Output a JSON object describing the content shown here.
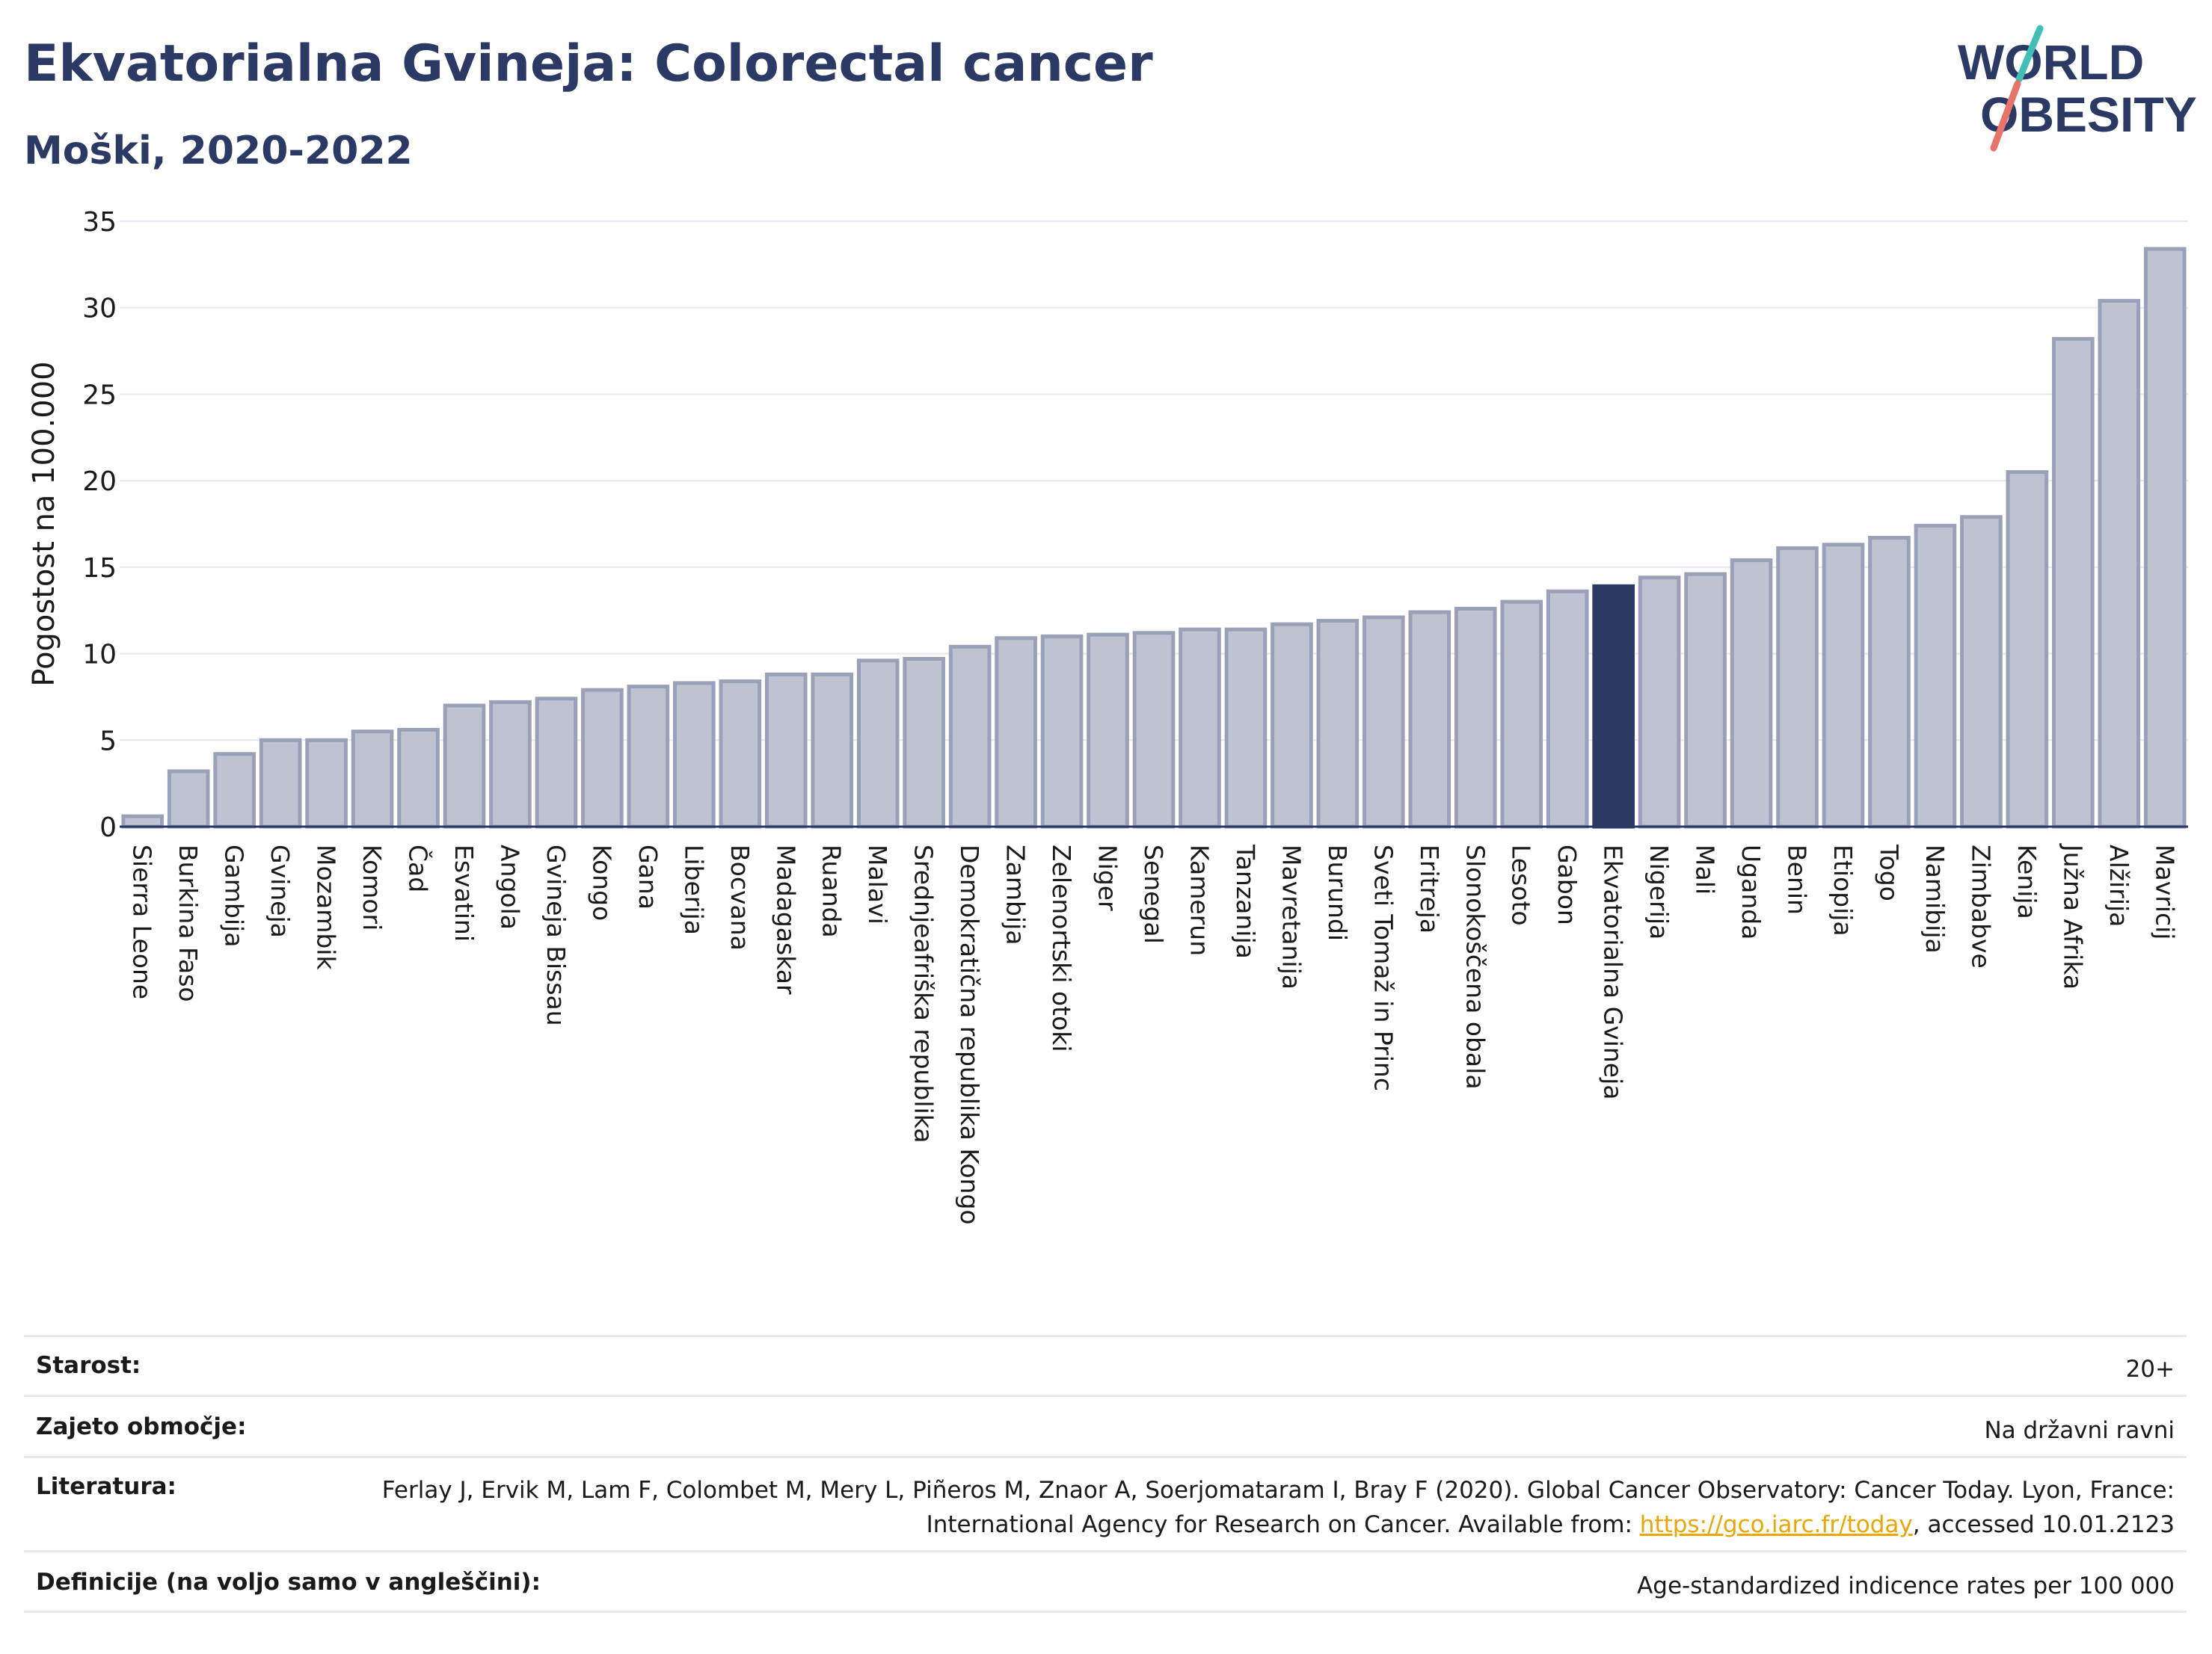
{
  "header": {
    "title": "Ekvatorialna Gvineja: Colorectal cancer",
    "subtitle": "Moški, 2020-2022"
  },
  "logo": {
    "line1": "WORLD",
    "line2": "OBESITY"
  },
  "colors": {
    "bar": "#bfc3d1",
    "bar_border": "#9aa0b8",
    "highlight": "#2b3a64",
    "title": "#2b3a64"
  },
  "chart_data": {
    "type": "bar",
    "ylabel": "Pogostost na 100.000",
    "ylim": [
      0,
      35
    ],
    "yticks": [
      0,
      5,
      10,
      15,
      20,
      25,
      30,
      35
    ],
    "grid": true,
    "highlight": "Ekvatorialna Gvineja",
    "categories": [
      "Sierra Leone",
      "Burkina Faso",
      "Gambija",
      "Gvineja",
      "Mozambik",
      "Komori",
      "Čad",
      "Esvatini",
      "Angola",
      "Gvineja Bissau",
      "Kongo",
      "Gana",
      "Liberija",
      "Bocvana",
      "Madagaskar",
      "Ruanda",
      "Malavi",
      "Srednjeafriška republika",
      "Demokratična republika Kongo",
      "Zambija",
      "Zelenortski otoki",
      "Niger",
      "Senegal",
      "Kamerun",
      "Tanzanija",
      "Mavretanija",
      "Burundi",
      "Sveti Tomaž in Princ",
      "Eritreja",
      "Slonokoščena obala",
      "Lesoto",
      "Gabon",
      "Ekvatorialna Gvineja",
      "Nigerija",
      "Mali",
      "Uganda",
      "Benin",
      "Etiopija",
      "Togo",
      "Namibija",
      "Zimbabve",
      "Kenija",
      "Južna Afrika",
      "Alžirija",
      "Mavricij"
    ],
    "values": [
      0.6,
      3.2,
      4.2,
      5.0,
      5.0,
      5.5,
      5.6,
      7.0,
      7.2,
      7.4,
      7.9,
      8.1,
      8.3,
      8.4,
      8.8,
      8.8,
      9.6,
      9.7,
      10.4,
      10.9,
      11.0,
      11.1,
      11.2,
      11.4,
      11.4,
      11.7,
      11.9,
      12.1,
      12.4,
      12.6,
      13.0,
      13.6,
      13.9,
      14.4,
      14.6,
      15.4,
      16.1,
      16.3,
      16.7,
      17.4,
      17.9,
      20.5,
      28.2,
      30.4,
      33.4
    ]
  },
  "meta": {
    "age_label": "Starost:",
    "age_value": "20+",
    "coverage_label": "Zajeto območje:",
    "coverage_value": "Na državni ravni",
    "reference_label": "Literatura:",
    "reference_text": "Ferlay J, Ervik M, Lam F, Colombet M, Mery L, Piñeros M, Znaor A, Soerjomataram I, Bray F (2020). Global Cancer Observatory: Cancer Today. Lyon, France: International Agency for Research on Cancer. Available from: ",
    "reference_link": "https://gco.iarc.fr/today",
    "reference_suffix": ", accessed 10.01.2123",
    "definitions_label": "Definicije (na voljo samo v angleščini):",
    "definitions_value": "Age-standardized indicence rates per 100 000"
  }
}
